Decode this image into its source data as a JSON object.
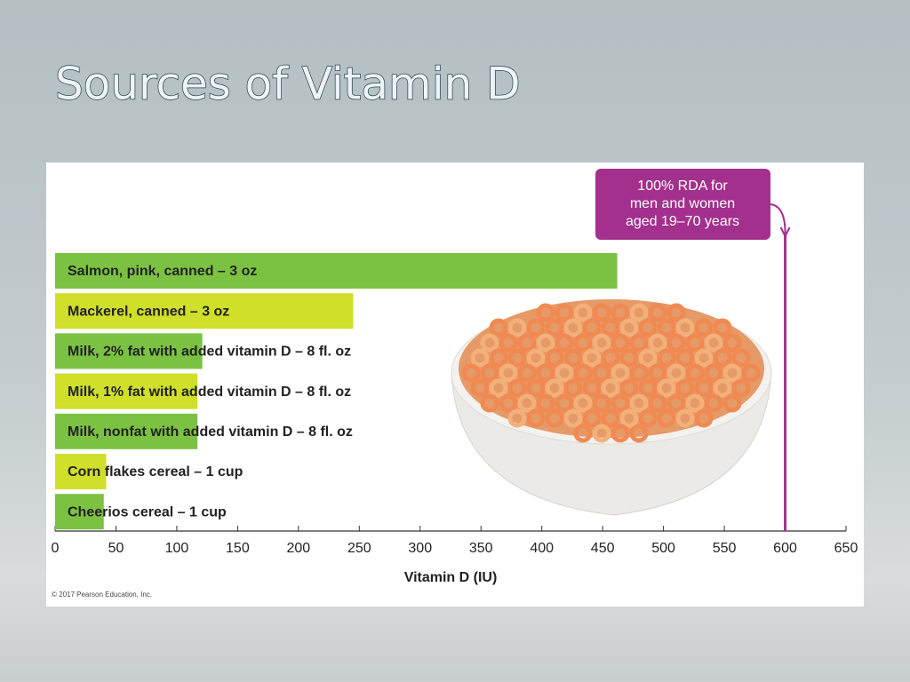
{
  "slide": {
    "title": "Sources of Vitamin D"
  },
  "chart_data": {
    "type": "bar",
    "orientation": "horizontal",
    "x_label": "Vitamin D (IU)",
    "categories": [
      "Salmon, pink, canned – 3 oz",
      "Mackerel, canned – 3 oz",
      "Milk, 2% fat with added vitamin D – 8 fl. oz",
      "Milk, 1% fat with added vitamin D – 8 fl. oz",
      "Milk, nonfat with added vitamin D – 8 fl. oz",
      "Corn flakes cereal – 1 cup",
      "Cheerios cereal – 1 cup"
    ],
    "values": [
      462,
      245,
      121,
      117,
      117,
      42,
      40
    ],
    "colors": [
      "#7cc242",
      "#cfdf2a",
      "#7cc242",
      "#cfdf2a",
      "#7cc242",
      "#cfdf2a",
      "#7cc242"
    ],
    "xlim": [
      0,
      650
    ],
    "xticks": [
      0,
      50,
      100,
      150,
      200,
      250,
      300,
      350,
      400,
      450,
      500,
      550,
      600,
      650
    ],
    "annotation": {
      "lines": [
        "100% RDA for",
        "men and women",
        "aged 19–70 years"
      ],
      "value": 600,
      "color": "#a3308c"
    },
    "credit": "© 2017 Pearson Education, Inc."
  }
}
